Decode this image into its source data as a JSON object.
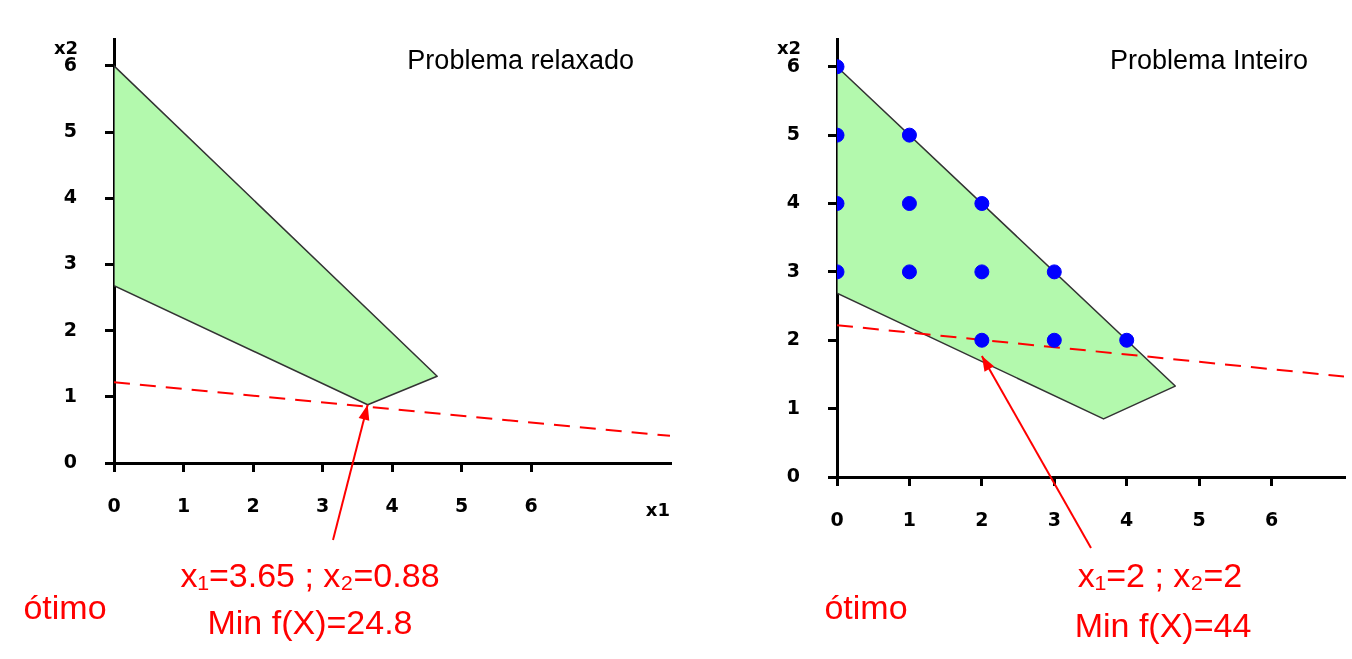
{
  "chart_data": [
    {
      "type": "area",
      "title": "Problema relaxado",
      "xlabel": "x1",
      "ylabel": "x2",
      "xlim": [
        0,
        8
      ],
      "ylim": [
        0,
        6.4
      ],
      "xticks": [
        0,
        1,
        2,
        3,
        4,
        5,
        6
      ],
      "yticks": [
        0,
        1,
        2,
        3,
        4,
        5,
        6
      ],
      "grid": false,
      "legend": false,
      "series": [
        {
          "color": "#b3f9ad",
          "x": [
            0,
            0,
            3.65,
            4.65,
            0
          ],
          "values": [
            6,
            2.68,
            0.88,
            1.31,
            6
          ]
        },
        {
          "type": "line",
          "color": "#ff0000",
          "line_style": "dashed",
          "x": [
            0,
            8
          ],
          "values": [
            1.22,
            0.41
          ]
        }
      ],
      "annotations": [
        {
          "text": "x₁=3.65 ; x₂=0.88",
          "x": 3.65,
          "y": 0.88
        },
        "Min f(X)=24.8",
        "ótimo"
      ]
    },
    {
      "type": "area",
      "title": "Problema Inteiro",
      "ylabel": "x2",
      "xlim": [
        0,
        7
      ],
      "ylim": [
        0,
        6.4
      ],
      "xticks": [
        0,
        1,
        2,
        3,
        4,
        5,
        6
      ],
      "yticks": [
        0,
        1,
        2,
        3,
        4,
        5,
        6
      ],
      "grid": false,
      "legend": false,
      "series": [
        {
          "color": "#b3f9ad",
          "x": [
            0,
            0,
            3.68,
            4.67,
            0
          ],
          "values": [
            6,
            2.69,
            0.85,
            1.33,
            6
          ]
        },
        {
          "type": "line",
          "color": "#ff0000",
          "line_style": "dashed",
          "x": [
            0,
            7
          ],
          "values": [
            2.22,
            1.47
          ]
        },
        {
          "type": "scatter",
          "marker": "circle",
          "color": "#0000ff",
          "x": [
            0,
            0,
            1,
            0,
            1,
            2,
            0,
            1,
            2,
            3,
            2,
            3,
            4
          ],
          "values": [
            6,
            5,
            5,
            4,
            4,
            4,
            3,
            3,
            3,
            3,
            2,
            2,
            2
          ]
        }
      ],
      "annotations": [
        {
          "text": "x₁=2 ; x₂=2",
          "x": 2,
          "y": 1.77
        },
        "Min f(X)=44",
        "ótimo"
      ]
    }
  ]
}
